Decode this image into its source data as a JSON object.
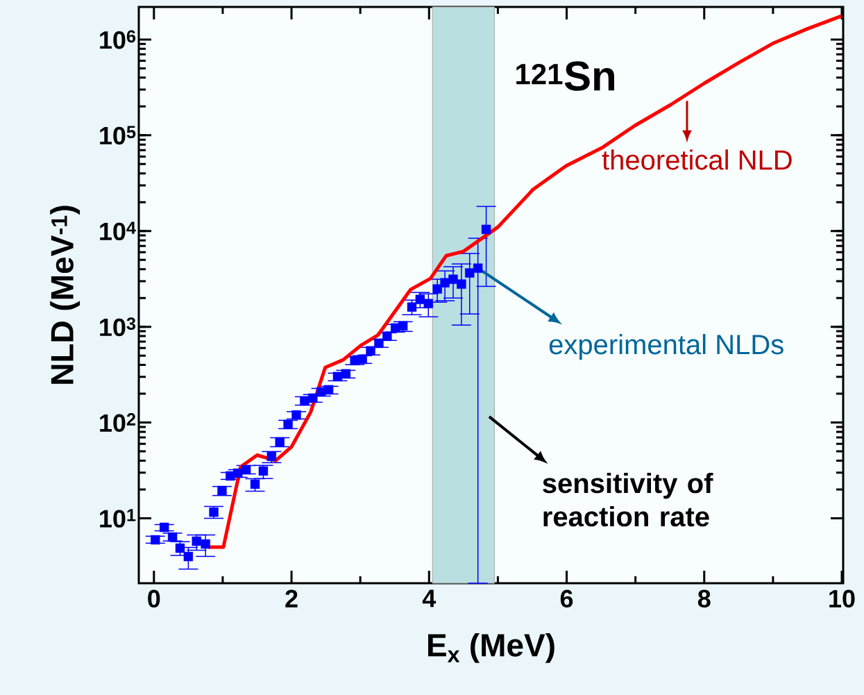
{
  "chart_data": {
    "type": "scatter",
    "xlabel": "E$_{x}$ (MeV)",
    "ylabel": "NLD (MeV$^{-1}$)",
    "log": "y",
    "grid": false,
    "xlim": [
      -0.22,
      10.02
    ],
    "ylim": [
      2.1,
      2190000
    ],
    "xticks": [
      0,
      {
        "value": 1,
        "label": null
      },
      2,
      {
        "value": 3,
        "label": null
      },
      4,
      {
        "value": 5,
        "label": null
      },
      6,
      {
        "value": 7,
        "label": null
      },
      8,
      {
        "value": 9,
        "label": null
      },
      10
    ],
    "yticks": [
      {
        "value": 10,
        "label": "10$^{1}$"
      },
      {
        "value": 100,
        "label": "10$^{2}$"
      },
      {
        "value": 1000,
        "label": "10$^{3}$"
      },
      {
        "value": 10000,
        "label": "10$^{4}$"
      },
      {
        "value": 100000,
        "label": "10$^{5}$"
      },
      {
        "value": 1000000,
        "label": "10$^{6}$"
      }
    ],
    "series": [
      {
        "color": "#0000ff",
        "marker": "square",
        "x": [
          0.02,
          0.15,
          0.27,
          0.38,
          0.5,
          0.62,
          0.75,
          0.87,
          0.99,
          1.11,
          1.22,
          1.34,
          1.47,
          1.59,
          1.71,
          1.83,
          1.95,
          2.07,
          2.19,
          2.31,
          2.43,
          2.54,
          2.67,
          2.79,
          2.92,
          3.03,
          3.15,
          3.27,
          3.39,
          3.51,
          3.62,
          3.75,
          3.87,
          3.99,
          4.12,
          4.23,
          4.35,
          4.47,
          4.59,
          4.71,
          4.83
        ],
        "values": [
          5.96,
          8.05,
          6.37,
          4.88,
          3.99,
          5.77,
          5.39,
          11.6,
          19.5,
          27.7,
          29.6,
          32.2,
          22.7,
          31.2,
          44.3,
          62.8,
          95.5,
          120,
          168,
          180,
          209,
          220,
          302,
          323,
          444,
          459,
          561,
          674,
          797,
          973,
          1023,
          1607,
          1932,
          1746,
          2483,
          2884,
          3136,
          2793,
          3648,
          4096,
          10400
        ],
        "errors": [
          [
            5.5,
            6.5
          ],
          [
            7.4,
            8.6
          ],
          [
            5.8,
            7.0
          ],
          [
            4.1,
            5.7
          ],
          [
            2.95,
            4.96
          ],
          [
            4.64,
            6.7
          ],
          [
            4.0,
            6.7
          ],
          [
            10.0,
            13.3
          ],
          [
            17.3,
            21.5
          ],
          [
            25.5,
            30.1
          ],
          [
            26.8,
            32.2
          ],
          [
            29.1,
            35.6
          ],
          [
            19.2,
            25.9
          ],
          [
            26.0,
            35.7
          ],
          [
            38.1,
            49.8
          ],
          [
            55.9,
            69.4
          ],
          [
            86.4,
            105.5
          ],
          [
            109,
            130
          ],
          [
            152,
            186
          ],
          [
            163,
            196
          ],
          [
            189,
            227
          ],
          [
            199,
            239
          ],
          [
            273,
            328
          ],
          [
            292,
            351
          ],
          [
            402,
            483
          ],
          [
            415,
            499
          ],
          [
            508,
            610
          ],
          [
            610,
            733
          ],
          [
            721,
            866
          ],
          [
            881,
            1058
          ],
          [
            895,
            1130
          ],
          [
            1337,
            1900
          ],
          [
            1581,
            2284
          ],
          [
            1271,
            2207
          ],
          [
            1807,
            3139
          ],
          [
            1868,
            3833
          ],
          [
            1997,
            4237
          ],
          [
            1042,
            4533
          ],
          [
            1361,
            5826
          ],
          [
            2.1,
            8405
          ],
          [
            2644,
            18065
          ]
        ]
      },
      {
        "type": "line",
        "color": "#ff0000",
        "x": [
          0.79,
          1.01,
          1.26,
          1.5,
          1.77,
          2.0,
          2.28,
          2.49,
          2.75,
          3.01,
          3.26,
          3.73,
          4.02,
          4.25,
          4.5,
          5.0,
          5.51,
          5.99,
          6.51,
          6.99,
          7.51,
          8.0,
          8.51,
          9.01,
          9.49,
          10.0
        ],
        "values": [
          5.0,
          5.0,
          34.4,
          45.7,
          40.0,
          55.8,
          129,
          376,
          451,
          641,
          824,
          2443,
          3191,
          5535,
          6124,
          10990,
          27100,
          47900,
          73800,
          126000,
          208000,
          349000,
          577000,
          920000,
          1285000,
          1765000
        ]
      }
    ],
    "bands": [
      {
        "axis": "x",
        "from": 4.05,
        "to": 4.95,
        "label": "sensitivity of reaction rate",
        "color": "#b9dfe0"
      }
    ],
    "annotations": [
      "$^{121}$Sn",
      {
        "text": "theoretical NLD",
        "x": 7.75,
        "y": 270000
      },
      {
        "text": "experimental NLDs",
        "x": 4.71,
        "y": 4096
      }
    ]
  }
}
